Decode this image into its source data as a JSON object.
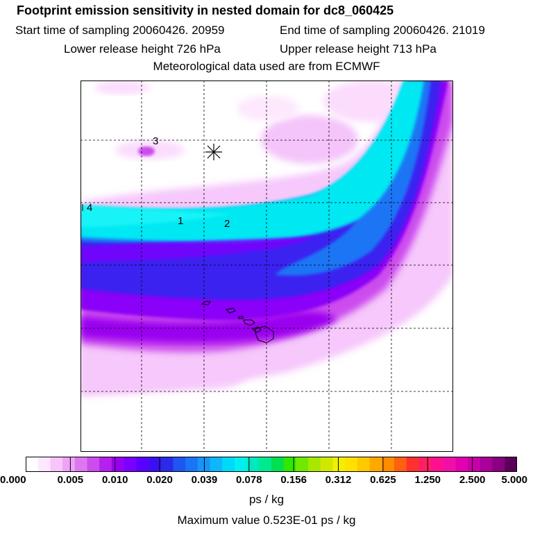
{
  "header": {
    "title": "Footprint emission sensitivity in nested domain for dc8_060425",
    "start_label": "Start time of sampling 20060426. 20959",
    "end_label": "End time of sampling 20060426. 21019",
    "lower_label": "Lower release height  726 hPa",
    "upper_label": "Upper release height  713 hPa",
    "met_label": "Meteorological data used are from ECMWF"
  },
  "map": {
    "point_labels": [
      "3",
      "1",
      "2",
      "4"
    ],
    "release_marker": "asterisk-icon",
    "coastline": "hawaiian-islands"
  },
  "colorbar": {
    "tick_labels": [
      "0.000",
      "0.005",
      "0.010",
      "0.020",
      "0.039",
      "0.078",
      "0.156",
      "0.312",
      "0.625",
      "1.250",
      "2.500",
      "5.000"
    ],
    "colors": [
      "#ffffff",
      "#ffe8ff",
      "#f8c4fb",
      "#eea3f6",
      "#dd77f0",
      "#cc4cee",
      "#b520ec",
      "#9a00f0",
      "#7a00ff",
      "#5a00ff",
      "#3a10f0",
      "#2a2ae8",
      "#1f55f0",
      "#1a75f5",
      "#1595f8",
      "#10b5fa",
      "#00d8f8",
      "#00f0f0",
      "#00e8c0",
      "#00e890",
      "#00e050",
      "#30e800",
      "#70e800",
      "#a8e800",
      "#d0e800",
      "#f0f000",
      "#ffe000",
      "#ffc800",
      "#ffa800",
      "#ff8c00",
      "#ff6010",
      "#ff3030",
      "#ff2060",
      "#ff1090",
      "#f010a8",
      "#e000b0",
      "#c800a8",
      "#a80098",
      "#880080",
      "#5a0058"
    ],
    "unit": "ps / kg",
    "max_value_text": "Maximum value  0.523E-01 ps / kg"
  }
}
